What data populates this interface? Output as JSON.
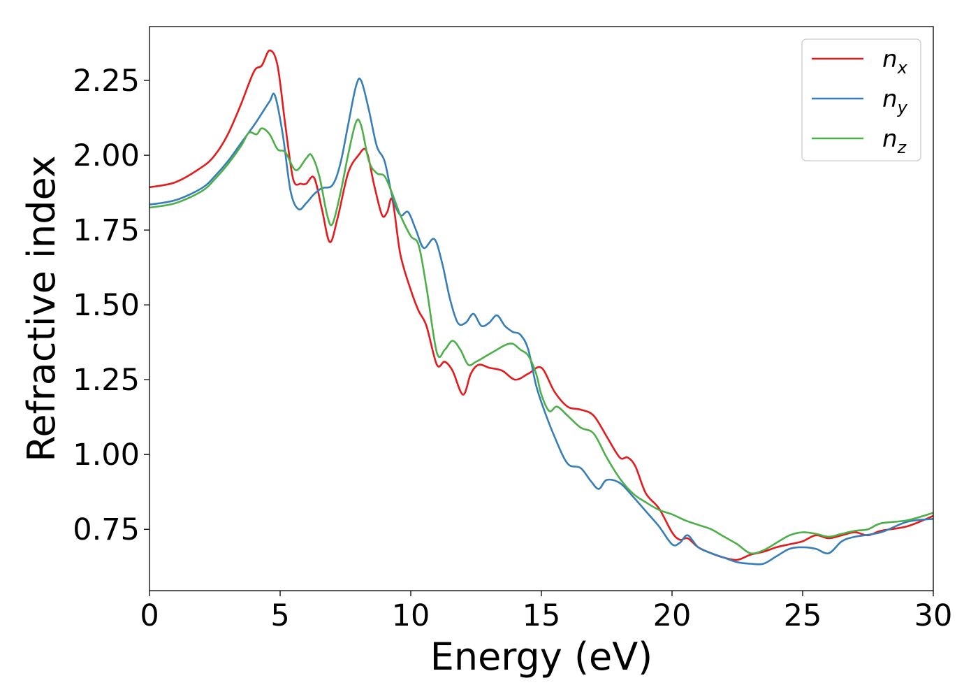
{
  "chart_data": {
    "type": "line",
    "title": "",
    "xlabel": "Energy (eV)",
    "ylabel": "Refractive index",
    "xlim": [
      0,
      30
    ],
    "ylim": [
      0.545,
      2.43
    ],
    "xticks": [
      0,
      5,
      10,
      15,
      20,
      25,
      30
    ],
    "xtick_labels": [
      "0",
      "5",
      "10",
      "15",
      "20",
      "25",
      "30"
    ],
    "yticks": [
      0.75,
      1.0,
      1.25,
      1.5,
      1.75,
      2.0,
      2.25
    ],
    "ytick_labels": [
      "0.75",
      "1.00",
      "1.25",
      "1.50",
      "1.75",
      "2.00",
      "2.25"
    ],
    "grid": false,
    "legend_position": "top-right",
    "series": [
      {
        "name": "n",
        "subscript": "x",
        "color": "#e41a1c",
        "x": [
          0,
          1,
          2,
          2.5,
          3,
          3.5,
          4,
          4.3,
          4.6,
          4.9,
          5.2,
          5.5,
          5.8,
          6.0,
          6.3,
          6.6,
          6.9,
          7.2,
          7.6,
          8.0,
          8.3,
          8.6,
          8.9,
          9.1,
          9.3,
          9.6,
          10.0,
          10.3,
          10.6,
          11.0,
          11.3,
          11.6,
          12.0,
          12.3,
          12.6,
          13.0,
          13.5,
          14.0,
          14.5,
          15.0,
          15.5,
          16.0,
          16.5,
          17.0,
          17.5,
          18.0,
          18.3,
          18.6,
          19.0,
          19.5,
          20.0,
          20.3,
          20.6,
          21.0,
          21.5,
          22.0,
          22.5,
          23.0,
          23.5,
          24.0,
          24.5,
          25.0,
          25.5,
          26.0,
          26.5,
          27.0,
          27.5,
          28.0,
          29.0,
          30.0
        ],
        "y": [
          1.893,
          1.91,
          1.96,
          2.0,
          2.07,
          2.17,
          2.28,
          2.3,
          2.35,
          2.3,
          2.1,
          1.92,
          1.905,
          1.905,
          1.925,
          1.82,
          1.71,
          1.79,
          1.94,
          2.0,
          2.015,
          1.9,
          1.8,
          1.81,
          1.85,
          1.67,
          1.55,
          1.48,
          1.43,
          1.3,
          1.31,
          1.28,
          1.2,
          1.27,
          1.3,
          1.29,
          1.28,
          1.25,
          1.27,
          1.29,
          1.21,
          1.16,
          1.15,
          1.13,
          1.06,
          0.99,
          0.99,
          0.96,
          0.87,
          0.82,
          0.74,
          0.715,
          0.72,
          0.69,
          0.67,
          0.655,
          0.648,
          0.665,
          0.675,
          0.69,
          0.7,
          0.71,
          0.73,
          0.72,
          0.73,
          0.74,
          0.73,
          0.745,
          0.76,
          0.795
        ]
      },
      {
        "name": "n",
        "subscript": "y",
        "color": "#377eb8",
        "x": [
          0,
          1,
          2,
          2.5,
          3,
          3.5,
          4,
          4.3,
          4.6,
          4.8,
          5.1,
          5.4,
          5.7,
          6.0,
          6.3,
          6.6,
          7.0,
          7.3,
          7.6,
          7.9,
          8.1,
          8.4,
          8.7,
          9.0,
          9.3,
          9.6,
          9.9,
          10.2,
          10.5,
          10.9,
          11.2,
          11.5,
          11.8,
          12.1,
          12.4,
          12.7,
          13.0,
          13.3,
          13.6,
          13.9,
          14.2,
          14.5,
          14.8,
          15.1,
          15.5,
          16.0,
          16.5,
          16.9,
          17.2,
          17.5,
          18.0,
          18.5,
          19.0,
          19.5,
          20.0,
          20.3,
          20.6,
          21.0,
          21.5,
          22.0,
          22.5,
          23.0,
          23.5,
          24.0,
          24.5,
          25.0,
          25.5,
          26.0,
          26.5,
          27.0,
          28.0,
          29.0,
          30.0
        ],
        "y": [
          1.835,
          1.85,
          1.89,
          1.93,
          1.98,
          2.04,
          2.1,
          2.14,
          2.18,
          2.2,
          2.07,
          1.88,
          1.82,
          1.84,
          1.87,
          1.89,
          1.9,
          1.97,
          2.1,
          2.23,
          2.25,
          2.15,
          2.03,
          1.98,
          1.86,
          1.8,
          1.81,
          1.75,
          1.69,
          1.72,
          1.64,
          1.52,
          1.44,
          1.44,
          1.47,
          1.43,
          1.44,
          1.465,
          1.43,
          1.41,
          1.4,
          1.35,
          1.23,
          1.15,
          1.06,
          0.97,
          0.955,
          0.91,
          0.885,
          0.915,
          0.905,
          0.86,
          0.81,
          0.76,
          0.7,
          0.705,
          0.73,
          0.69,
          0.67,
          0.655,
          0.64,
          0.635,
          0.635,
          0.66,
          0.685,
          0.69,
          0.685,
          0.67,
          0.71,
          0.725,
          0.74,
          0.775,
          0.785
        ]
      },
      {
        "name": "n",
        "subscript": "z",
        "color": "#4daf4a",
        "x": [
          0,
          1,
          2,
          2.5,
          3,
          3.5,
          3.8,
          4.1,
          4.3,
          4.6,
          4.9,
          5.2,
          5.6,
          6.0,
          6.2,
          6.5,
          6.8,
          7.0,
          7.3,
          7.6,
          7.9,
          8.1,
          8.4,
          8.7,
          9.0,
          9.3,
          9.6,
          10.0,
          10.3,
          10.6,
          11.0,
          11.3,
          11.6,
          11.9,
          12.2,
          12.5,
          12.9,
          13.2,
          13.6,
          13.9,
          14.2,
          14.5,
          14.8,
          15.0,
          15.3,
          15.6,
          16.0,
          16.5,
          17.0,
          17.5,
          18.0,
          18.5,
          19.0,
          19.5,
          20.0,
          20.5,
          21.0,
          21.5,
          22.0,
          22.5,
          23.0,
          23.5,
          24.0,
          24.5,
          25.0,
          25.5,
          26.0,
          26.5,
          27.0,
          27.5,
          28.0,
          29.0,
          30.0
        ],
        "y": [
          1.825,
          1.84,
          1.88,
          1.92,
          1.97,
          2.03,
          2.075,
          2.07,
          2.09,
          2.07,
          2.02,
          2.01,
          1.95,
          1.99,
          2.0,
          1.93,
          1.8,
          1.77,
          1.87,
          2.0,
          2.11,
          2.1,
          1.98,
          1.94,
          1.93,
          1.87,
          1.8,
          1.73,
          1.7,
          1.56,
          1.34,
          1.35,
          1.38,
          1.35,
          1.3,
          1.31,
          1.33,
          1.345,
          1.365,
          1.37,
          1.35,
          1.33,
          1.27,
          1.2,
          1.145,
          1.16,
          1.13,
          1.09,
          1.07,
          0.99,
          0.92,
          0.87,
          0.84,
          0.815,
          0.8,
          0.78,
          0.765,
          0.75,
          0.725,
          0.7,
          0.67,
          0.68,
          0.705,
          0.73,
          0.74,
          0.735,
          0.725,
          0.735,
          0.745,
          0.75,
          0.77,
          0.78,
          0.805
        ]
      }
    ]
  }
}
